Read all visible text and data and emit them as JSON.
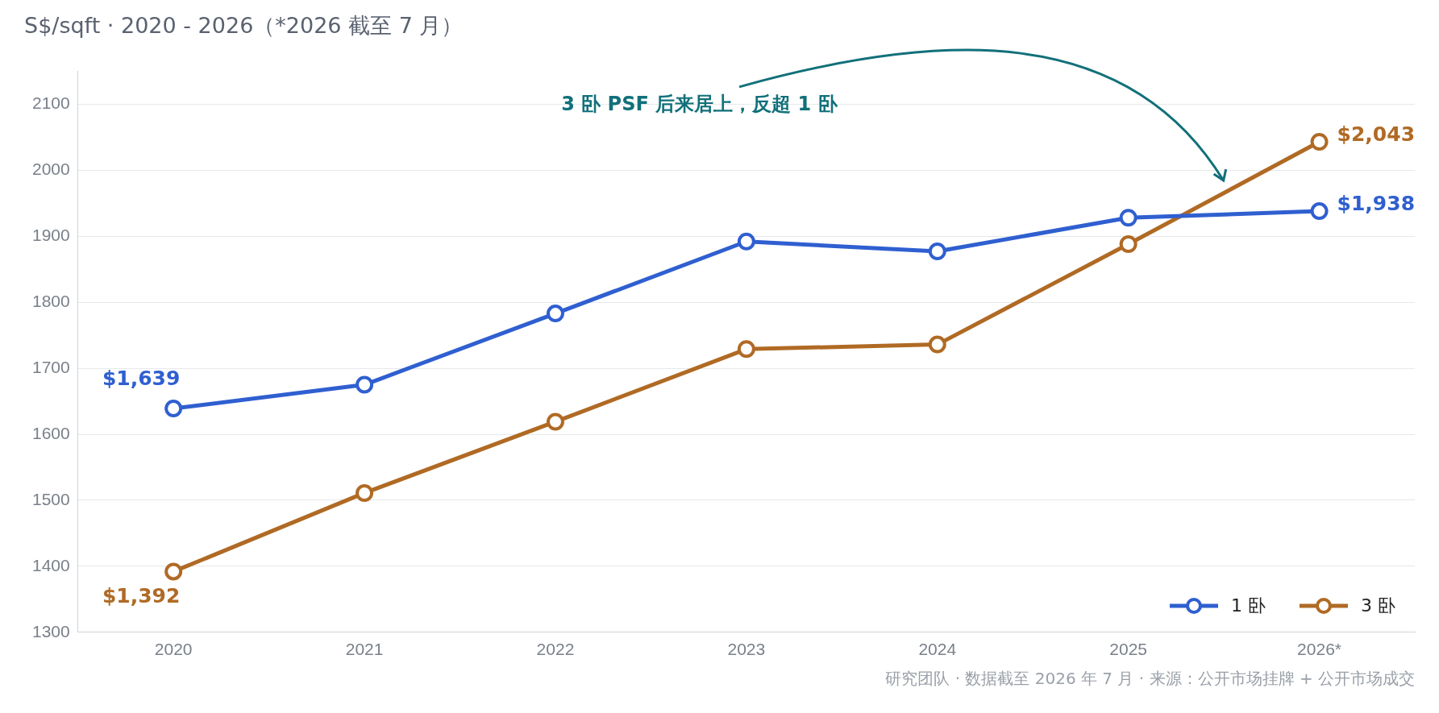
{
  "chart_data": {
    "type": "line",
    "title": "S$/sqft · 2020 - 2026（*2026 截至 7 月）",
    "categories": [
      "2020",
      "2021",
      "2022",
      "2023",
      "2024",
      "2025",
      "2026*"
    ],
    "series": [
      {
        "name": "1 卧",
        "color": "#2f5fd0",
        "values": [
          1639,
          1675,
          1783,
          1892,
          1877,
          1928,
          1938
        ],
        "value_labels": [
          "$1,639",
          null,
          null,
          null,
          null,
          null,
          "$1,938"
        ]
      },
      {
        "name": "3 卧",
        "color": "#b06a24",
        "values": [
          1392,
          1511,
          1619,
          1729,
          1736,
          1888,
          2043
        ],
        "value_labels": [
          "$1,392",
          null,
          null,
          null,
          null,
          null,
          "$2,043"
        ]
      }
    ],
    "ylim": [
      1300,
      2150
    ],
    "yticks": [
      1300,
      1400,
      1500,
      1600,
      1700,
      1800,
      1900,
      2000,
      2100
    ],
    "grid": "y",
    "legend": "bottom right",
    "marker": "circle",
    "line_style": "solid",
    "annotations": [
      "3 卧 PSF 后来居上，反超 1 卧",
      "研究团队 · 数据截至 2026 年 7 月 · 来源：公开市场挂牌 + 公开市场成交"
    ]
  }
}
